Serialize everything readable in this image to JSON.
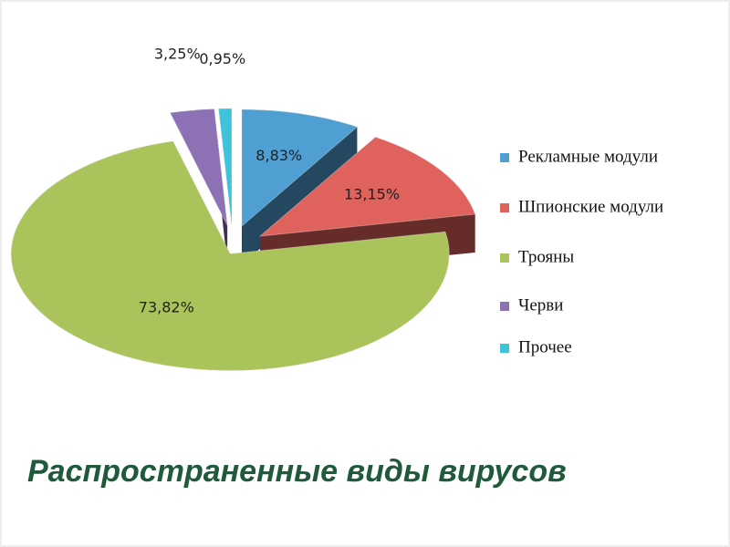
{
  "chart_data": {
    "type": "pie",
    "title": "Распространенные виды вирусов",
    "categories": [
      "Рекламные модули",
      "Шпионские модули",
      "Трояны",
      "Черви",
      "Прочее"
    ],
    "values": [
      8.83,
      13.15,
      73.82,
      3.25,
      0.95
    ],
    "value_labels": [
      "8,83%",
      "13,15%",
      "73,82%",
      "3,25%",
      "0,95%"
    ],
    "colors": [
      "#4f9fd2",
      "#e0625c",
      "#aac35a",
      "#8c72b4",
      "#3ec3da"
    ],
    "legend": "right"
  }
}
